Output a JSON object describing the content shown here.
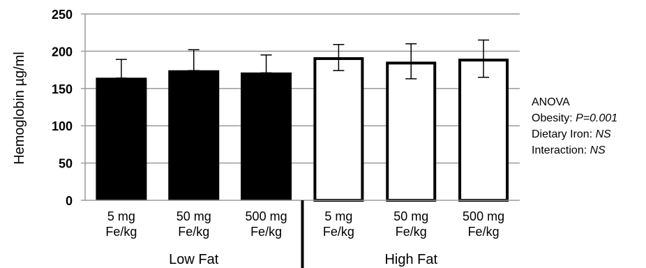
{
  "chart_data": {
    "type": "bar",
    "ylabel": "Hemoglobin µg/ml",
    "ylim": [
      0,
      250
    ],
    "yticks": [
      "0",
      "50",
      "100",
      "150",
      "200",
      "250"
    ],
    "grid": true,
    "categories": [
      {
        "line1": "5 mg",
        "line2": "Fe/kg"
      },
      {
        "line1": "50 mg",
        "line2": "Fe/kg"
      },
      {
        "line1": "500 mg",
        "line2": "Fe/kg"
      },
      {
        "line1": "5 mg",
        "line2": "Fe/kg"
      },
      {
        "line1": "50 mg",
        "line2": "Fe/kg"
      },
      {
        "line1": "500 mg",
        "line2": "Fe/kg"
      }
    ],
    "groups": [
      {
        "label": "Low Fat",
        "fill": "#000000",
        "values": [
          164,
          174,
          171
        ],
        "err_high": [
          189,
          202,
          195
        ],
        "err_low": [
          164,
          174,
          171
        ]
      },
      {
        "label": "High Fat",
        "fill": "#ffffff",
        "values": [
          192,
          186,
          190
        ],
        "err_high": [
          209,
          210,
          215
        ],
        "err_low": [
          174,
          163,
          165
        ]
      }
    ],
    "annotation": {
      "title": "ANOVA",
      "lines": [
        {
          "label": "Obesity: ",
          "value": "P=0.001"
        },
        {
          "label": "Dietary Iron: ",
          "value": "NS"
        },
        {
          "label": "Interaction: ",
          "value": "NS"
        }
      ]
    }
  }
}
